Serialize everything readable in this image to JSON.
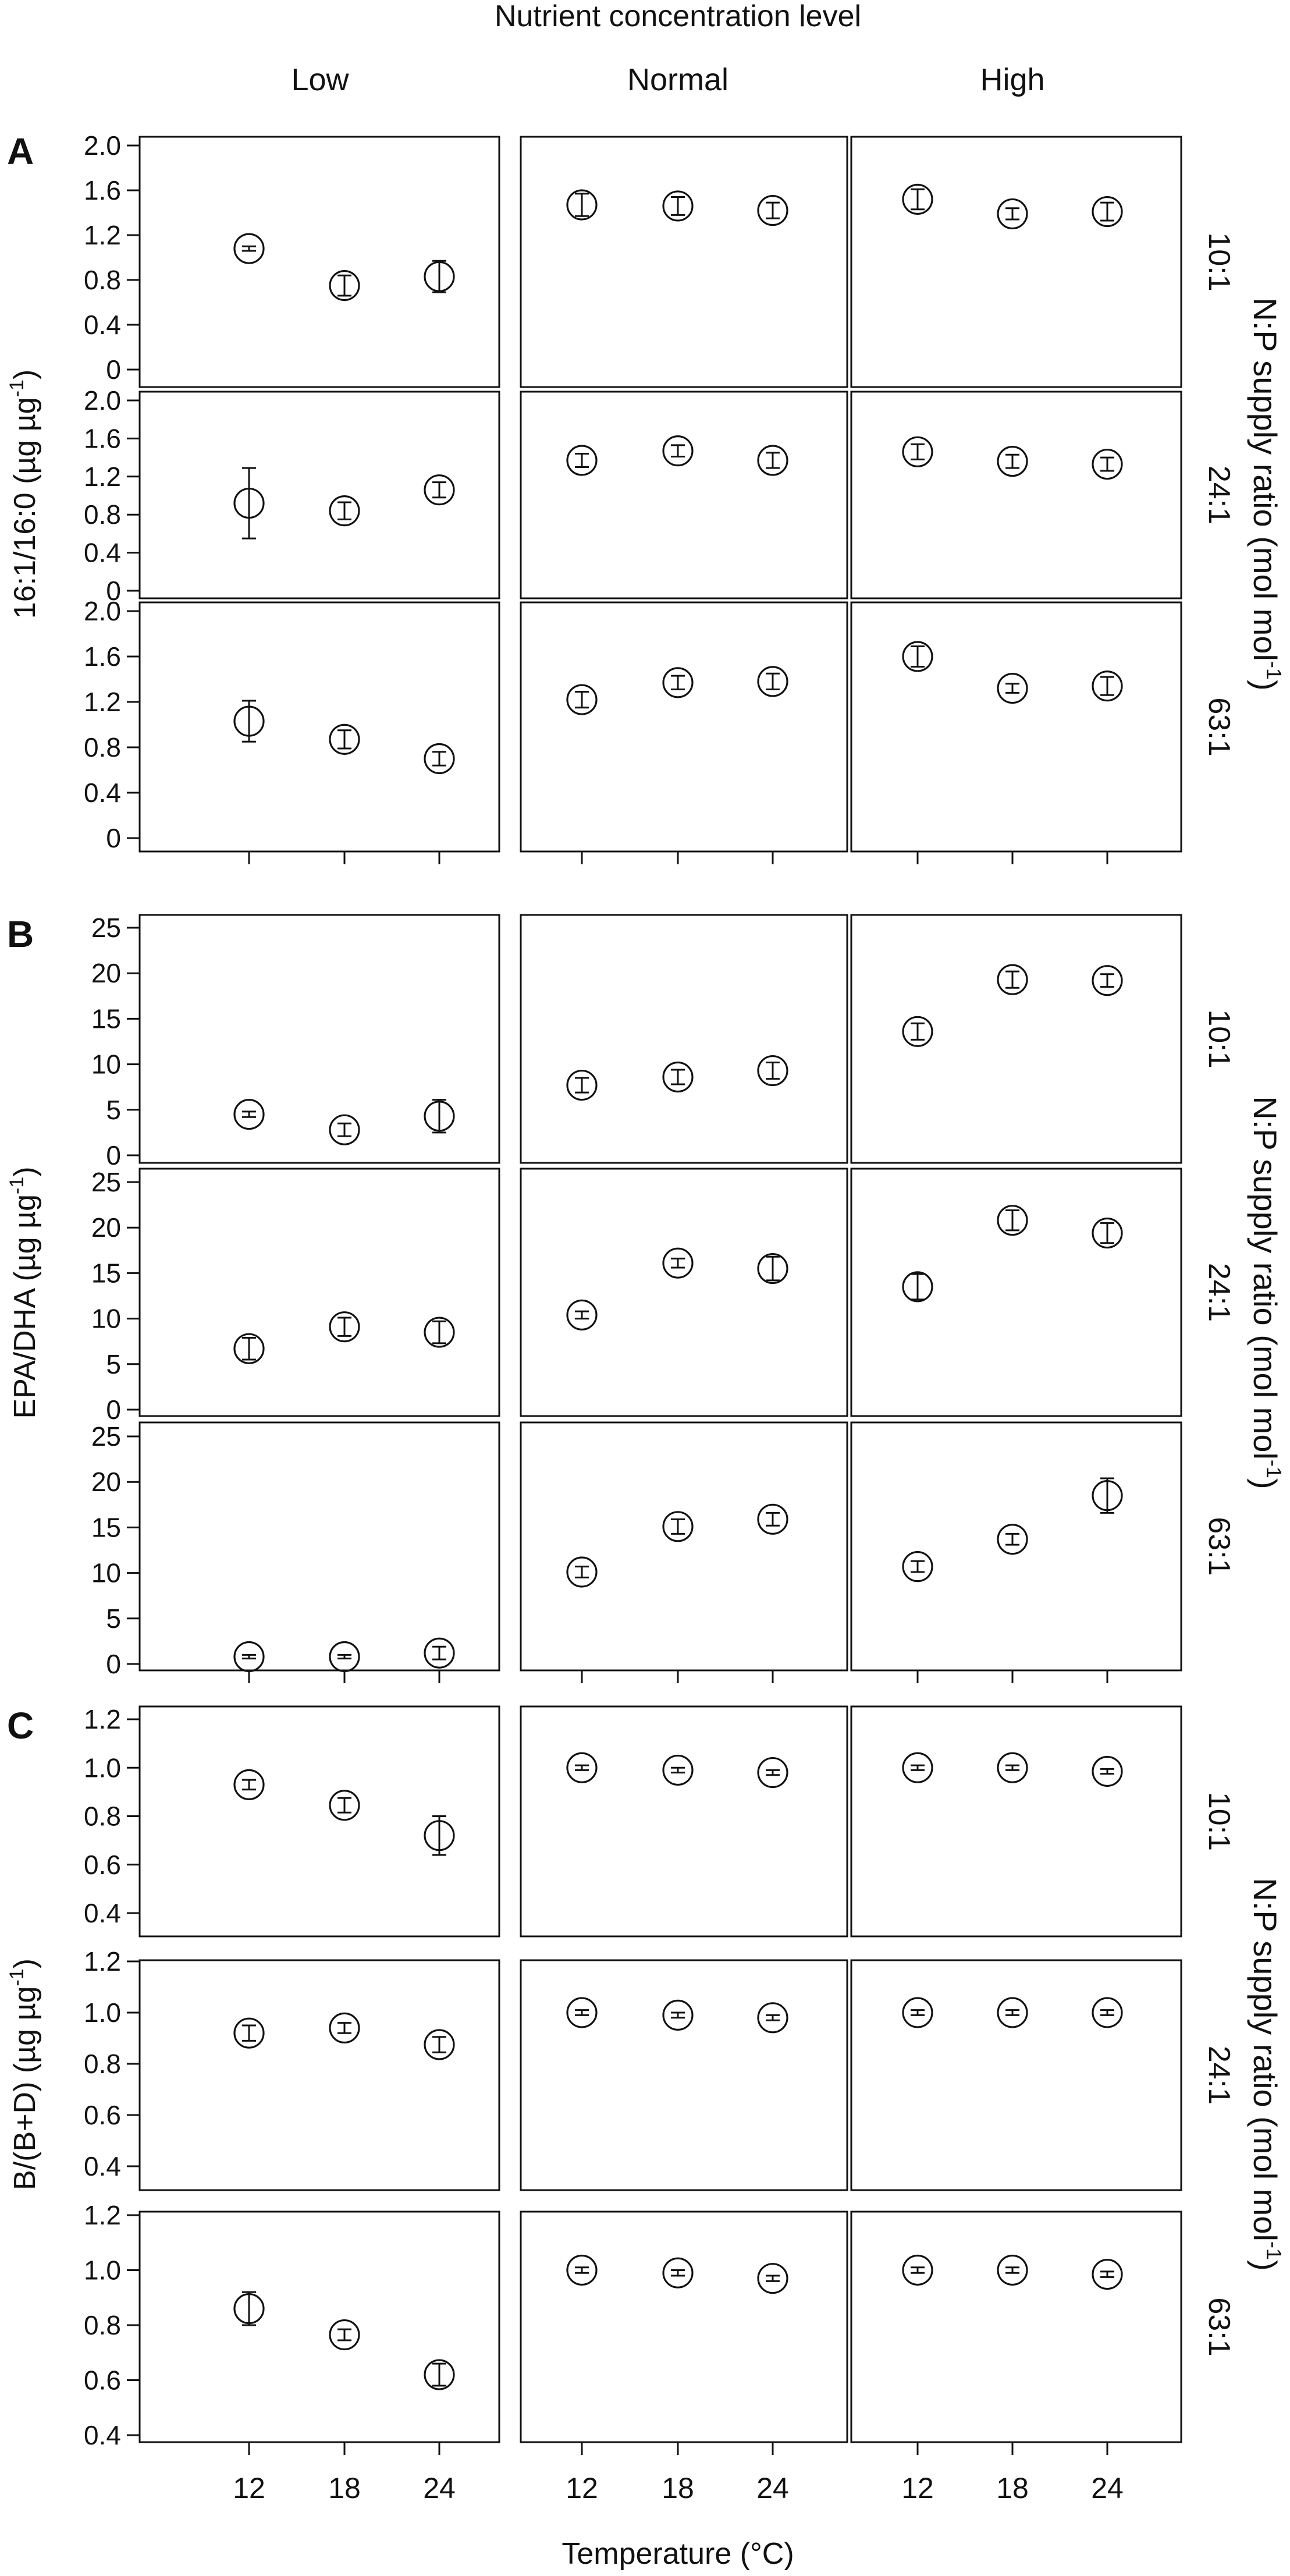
{
  "figure": {
    "top_title": "Nutrient concentration level",
    "x_axis_label": "Temperature (°C)",
    "right_title_parts": [
      "N:P supply ratio (mol mol",
      "-1",
      ")"
    ],
    "columns": [
      "Low",
      "Normal",
      "High"
    ],
    "rows": [
      "10:1",
      "24:1",
      "63:1"
    ],
    "x_ticks": [
      12,
      18,
      24
    ]
  },
  "chart_data": [
    {
      "panel": "A",
      "type": "scatter",
      "ylabel_parts": [
        "16:1/16:0 (µg µg",
        "-1",
        ")"
      ],
      "ylim": [
        0,
        2.0
      ],
      "yticks": [
        "0",
        "0.4",
        "0.8",
        "1.2",
        "1.6",
        "2.0"
      ],
      "x": [
        12,
        18,
        24
      ],
      "series": [
        {
          "col": "Low",
          "row": "10:1",
          "values": [
            1.08,
            0.75,
            0.83
          ],
          "errors": [
            0.02,
            0.09,
            0.14
          ]
        },
        {
          "col": "Normal",
          "row": "10:1",
          "values": [
            1.47,
            1.46,
            1.42
          ],
          "errors": [
            0.1,
            0.08,
            0.07
          ]
        },
        {
          "col": "High",
          "row": "10:1",
          "values": [
            1.52,
            1.39,
            1.41
          ],
          "errors": [
            0.09,
            0.05,
            0.08
          ]
        },
        {
          "col": "Low",
          "row": "24:1",
          "values": [
            0.92,
            0.84,
            1.06
          ],
          "errors": [
            0.37,
            0.09,
            0.08
          ]
        },
        {
          "col": "Normal",
          "row": "24:1",
          "values": [
            1.37,
            1.47,
            1.37
          ],
          "errors": [
            0.07,
            0.06,
            0.08
          ]
        },
        {
          "col": "High",
          "row": "24:1",
          "values": [
            1.46,
            1.36,
            1.33
          ],
          "errors": [
            0.08,
            0.07,
            0.07
          ]
        },
        {
          "col": "Low",
          "row": "63:1",
          "values": [
            1.03,
            0.87,
            0.7
          ],
          "errors": [
            0.18,
            0.08,
            0.06
          ]
        },
        {
          "col": "Normal",
          "row": "63:1",
          "values": [
            1.22,
            1.37,
            1.38
          ],
          "errors": [
            0.07,
            0.06,
            0.07
          ]
        },
        {
          "col": "High",
          "row": "63:1",
          "values": [
            1.6,
            1.32,
            1.34
          ],
          "errors": [
            0.09,
            0.04,
            0.08
          ]
        }
      ]
    },
    {
      "panel": "B",
      "type": "scatter",
      "ylabel_parts": [
        "EPA/DHA (µg µg",
        "-1",
        ")"
      ],
      "ylim": [
        0,
        25
      ],
      "yticks": [
        "0",
        "5",
        "10",
        "15",
        "20",
        "25"
      ],
      "x": [
        12,
        18,
        24
      ],
      "series": [
        {
          "col": "Low",
          "row": "10:1",
          "values": [
            4.5,
            2.8,
            4.3
          ],
          "errors": [
            0.3,
            0.7,
            1.8
          ]
        },
        {
          "col": "Normal",
          "row": "10:1",
          "values": [
            7.7,
            8.6,
            9.3
          ],
          "errors": [
            0.8,
            0.8,
            0.9
          ]
        },
        {
          "col": "High",
          "row": "10:1",
          "values": [
            13.6,
            19.3,
            19.2
          ],
          "errors": [
            0.9,
            0.9,
            0.7
          ]
        },
        {
          "col": "Low",
          "row": "24:1",
          "values": [
            6.7,
            9.1,
            8.5
          ],
          "errors": [
            1.2,
            1.0,
            1.2
          ]
        },
        {
          "col": "Normal",
          "row": "24:1",
          "values": [
            10.4,
            16.1,
            15.5
          ],
          "errors": [
            0.4,
            0.5,
            1.3
          ]
        },
        {
          "col": "High",
          "row": "24:1",
          "values": [
            13.5,
            20.8,
            19.4
          ],
          "errors": [
            1.4,
            1.1,
            1.1
          ]
        },
        {
          "col": "Low",
          "row": "63:1",
          "values": [
            0.8,
            0.8,
            1.2
          ],
          "errors": [
            0.2,
            0.2,
            0.7
          ]
        },
        {
          "col": "Normal",
          "row": "63:1",
          "values": [
            10.1,
            15.1,
            15.9
          ],
          "errors": [
            0.6,
            0.8,
            0.7
          ]
        },
        {
          "col": "High",
          "row": "63:1",
          "values": [
            10.7,
            13.7,
            18.5
          ],
          "errors": [
            0.6,
            0.6,
            1.9
          ]
        }
      ]
    },
    {
      "panel": "C",
      "type": "scatter",
      "ylabel_parts": [
        "B/(B+D) (µg µg",
        "-1",
        ")"
      ],
      "ylim": [
        0.4,
        1.2
      ],
      "yticks": [
        "0.4",
        "0.6",
        "0.8",
        "1.0",
        "1.2"
      ],
      "x": [
        12,
        18,
        24
      ],
      "series": [
        {
          "col": "Low",
          "row": "10:1",
          "values": [
            0.93,
            0.845,
            0.72
          ],
          "errors": [
            0.02,
            0.03,
            0.08
          ]
        },
        {
          "col": "Normal",
          "row": "10:1",
          "values": [
            1.0,
            0.99,
            0.98
          ],
          "errors": [
            0.01,
            0.01,
            0.01
          ]
        },
        {
          "col": "High",
          "row": "10:1",
          "values": [
            1.0,
            1.0,
            0.985
          ],
          "errors": [
            0.01,
            0.01,
            0.01
          ]
        },
        {
          "col": "Low",
          "row": "24:1",
          "values": [
            0.92,
            0.94,
            0.875
          ],
          "errors": [
            0.03,
            0.02,
            0.03
          ]
        },
        {
          "col": "Normal",
          "row": "24:1",
          "values": [
            1.0,
            0.99,
            0.98
          ],
          "errors": [
            0.01,
            0.01,
            0.01
          ]
        },
        {
          "col": "High",
          "row": "24:1",
          "values": [
            1.0,
            1.0,
            1.0
          ],
          "errors": [
            0.01,
            0.01,
            0.01
          ]
        },
        {
          "col": "Low",
          "row": "63:1",
          "values": [
            0.86,
            0.765,
            0.62
          ],
          "errors": [
            0.06,
            0.02,
            0.04
          ]
        },
        {
          "col": "Normal",
          "row": "63:1",
          "values": [
            1.0,
            0.99,
            0.97
          ],
          "errors": [
            0.01,
            0.01,
            0.01
          ]
        },
        {
          "col": "High",
          "row": "63:1",
          "values": [
            1.0,
            1.0,
            0.985
          ],
          "errors": [
            0.01,
            0.01,
            0.01
          ]
        }
      ]
    }
  ]
}
